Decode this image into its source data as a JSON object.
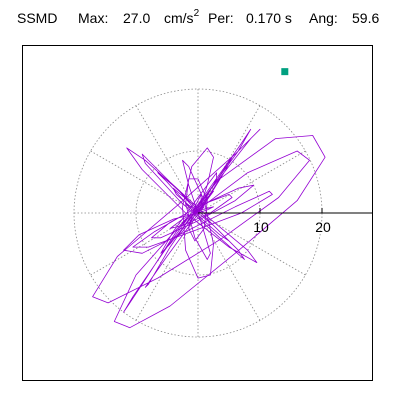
{
  "header": {
    "station": "SSMD",
    "max_label": "Max:",
    "max_value": "27.0",
    "max_unit_base": "cm/s",
    "max_unit_exp": "2",
    "per_label": "Per:",
    "per_value": "0.170 s",
    "ang_label": "Ang:",
    "ang_value": "59.6"
  },
  "chart_data": {
    "type": "line",
    "subtype": "polar-orbit",
    "title": "",
    "axis_ticks": [
      {
        "value": 10,
        "label": "10"
      },
      {
        "value": 20,
        "label": "20"
      }
    ],
    "rlim": [
      0,
      20
    ],
    "grid": true,
    "grid_rings": [
      10,
      20
    ],
    "grid_style": "dotted",
    "max_value": 27.0,
    "angle_deg": 59.6,
    "colors": {
      "trace": "#9400d3",
      "marker": "#00a080",
      "axis": "#000000",
      "grid": "#888888"
    },
    "series": [
      {
        "values": [
          [
            0.0,
            0.0
          ],
          [
            3.5,
            5.5
          ],
          [
            12.5,
            12.0
          ],
          [
            18.5,
            12.5
          ],
          [
            20.5,
            9.0
          ],
          [
            16.0,
            2.0
          ],
          [
            6.0,
            -6.5
          ],
          [
            -4.5,
            -15.0
          ],
          [
            -11.0,
            -18.5
          ],
          [
            -13.5,
            -17.5
          ],
          [
            -10.0,
            -10.0
          ],
          [
            -2.0,
            -1.0
          ],
          [
            8.0,
            6.5
          ],
          [
            16.0,
            10.0
          ],
          [
            18.0,
            8.5
          ],
          [
            13.0,
            2.5
          ],
          [
            4.0,
            -4.0
          ],
          [
            -6.5,
            -10.5
          ],
          [
            -14.5,
            -14.5
          ],
          [
            -17.0,
            -13.5
          ],
          [
            -13.0,
            -7.0
          ],
          [
            -3.0,
            1.5
          ],
          [
            6.0,
            9.5
          ],
          [
            10.0,
            13.5
          ],
          [
            8.5,
            12.0
          ],
          [
            3.0,
            5.0
          ],
          [
            -3.5,
            -3.0
          ],
          [
            -9.0,
            -11.5
          ],
          [
            -12.0,
            -16.0
          ],
          [
            -10.5,
            -13.5
          ],
          [
            -5.0,
            -5.5
          ],
          [
            1.5,
            3.5
          ],
          [
            6.5,
            10.5
          ],
          [
            8.5,
            13.5
          ],
          [
            6.5,
            10.0
          ],
          [
            1.0,
            2.5
          ],
          [
            -4.5,
            -5.5
          ],
          [
            -8.0,
            -11.5
          ],
          [
            -8.5,
            -12.0
          ],
          [
            -5.0,
            -7.0
          ],
          [
            0.5,
            0.5
          ],
          [
            4.5,
            7.0
          ],
          [
            5.5,
            9.0
          ],
          [
            3.5,
            6.0
          ],
          [
            -0.5,
            0.0
          ],
          [
            -4.5,
            -5.0
          ],
          [
            -6.0,
            -6.5
          ],
          [
            -4.0,
            -3.0
          ],
          [
            0.0,
            2.5
          ],
          [
            3.0,
            6.5
          ],
          [
            3.0,
            5.5
          ],
          [
            0.5,
            1.0
          ],
          [
            -2.5,
            -3.0
          ],
          [
            -3.5,
            -4.0
          ],
          [
            -1.5,
            -1.0
          ],
          [
            1.5,
            2.5
          ],
          [
            2.5,
            3.5
          ],
          [
            1.0,
            1.5
          ],
          [
            -1.0,
            -1.0
          ],
          [
            -1.5,
            -2.0
          ],
          [
            0.0,
            0.5
          ],
          [
            1.0,
            1.0
          ],
          [
            0.0,
            0.0
          ]
        ]
      },
      {
        "values": [
          [
            0.0,
            0.0
          ],
          [
            -3.0,
            3.5
          ],
          [
            -8.5,
            8.5
          ],
          [
            -11.5,
            10.5
          ],
          [
            -9.0,
            7.0
          ],
          [
            -2.0,
            0.0
          ],
          [
            5.0,
            -5.5
          ],
          [
            9.5,
            -8.0
          ],
          [
            8.0,
            -6.0
          ],
          [
            2.0,
            -1.0
          ],
          [
            -4.5,
            5.0
          ],
          [
            -9.0,
            9.5
          ],
          [
            -8.5,
            8.0
          ],
          [
            -3.0,
            2.0
          ],
          [
            3.5,
            -4.0
          ],
          [
            7.5,
            -7.5
          ],
          [
            6.5,
            -6.0
          ],
          [
            1.5,
            -1.0
          ],
          [
            -3.5,
            4.0
          ],
          [
            -6.5,
            6.5
          ],
          [
            -5.0,
            5.0
          ],
          [
            -0.5,
            0.0
          ],
          [
            3.5,
            -3.5
          ],
          [
            5.0,
            -4.5
          ],
          [
            3.0,
            -2.5
          ],
          [
            -1.0,
            1.5
          ],
          [
            -4.0,
            4.0
          ],
          [
            -3.5,
            3.0
          ],
          [
            0.0,
            0.0
          ],
          [
            2.5,
            -2.0
          ],
          [
            2.5,
            -2.0
          ],
          [
            0.0,
            0.5
          ],
          [
            -2.0,
            1.5
          ],
          [
            -1.0,
            0.5
          ],
          [
            0.0,
            0.0
          ]
        ]
      },
      {
        "values": [
          [
            0.0,
            0.0
          ],
          [
            -4.0,
            -1.0
          ],
          [
            -9.5,
            -3.5
          ],
          [
            -12.0,
            -6.0
          ],
          [
            -9.0,
            -6.5
          ],
          [
            -2.0,
            -3.0
          ],
          [
            6.0,
            1.0
          ],
          [
            11.5,
            3.5
          ],
          [
            12.0,
            3.0
          ],
          [
            7.0,
            0.0
          ],
          [
            -1.0,
            -3.0
          ],
          [
            -8.0,
            -5.5
          ],
          [
            -10.5,
            -5.5
          ],
          [
            -7.0,
            -3.0
          ],
          [
            0.0,
            1.0
          ],
          [
            6.5,
            4.0
          ],
          [
            9.0,
            4.5
          ],
          [
            6.0,
            2.0
          ],
          [
            -0.5,
            -1.5
          ],
          [
            -6.0,
            -4.0
          ],
          [
            -7.5,
            -4.0
          ],
          [
            -4.5,
            -1.5
          ],
          [
            1.0,
            1.5
          ],
          [
            5.0,
            3.0
          ],
          [
            5.5,
            2.5
          ],
          [
            2.0,
            0.0
          ],
          [
            -2.5,
            -2.0
          ],
          [
            -4.5,
            -2.5
          ],
          [
            -2.5,
            -1.0
          ],
          [
            0.5,
            0.5
          ],
          [
            2.5,
            1.0
          ],
          [
            1.5,
            0.5
          ],
          [
            0.0,
            0.0
          ]
        ]
      },
      {
        "values": [
          [
            0.0,
            0.0
          ],
          [
            1.5,
            4.5
          ],
          [
            2.5,
            9.0
          ],
          [
            1.5,
            10.5
          ],
          [
            -1.0,
            7.5
          ],
          [
            -2.5,
            1.0
          ],
          [
            -2.0,
            -6.0
          ],
          [
            0.0,
            -10.5
          ],
          [
            2.0,
            -10.0
          ],
          [
            2.5,
            -5.0
          ],
          [
            1.0,
            2.0
          ],
          [
            -1.5,
            7.5
          ],
          [
            -2.5,
            8.5
          ],
          [
            -1.5,
            4.5
          ],
          [
            0.5,
            -1.5
          ],
          [
            2.0,
            -6.5
          ],
          [
            1.5,
            -7.5
          ],
          [
            -0.5,
            -4.0
          ],
          [
            -2.0,
            1.5
          ],
          [
            -1.5,
            5.5
          ],
          [
            0.0,
            5.5
          ],
          [
            1.5,
            2.0
          ],
          [
            1.0,
            -2.5
          ],
          [
            -0.5,
            -4.5
          ],
          [
            -1.5,
            -2.5
          ],
          [
            -0.5,
            1.0
          ],
          [
            0.5,
            3.0
          ],
          [
            0.5,
            1.5
          ],
          [
            0.0,
            0.0
          ]
        ]
      }
    ],
    "marker": {
      "x": 14.0,
      "y": 22.8
    }
  }
}
